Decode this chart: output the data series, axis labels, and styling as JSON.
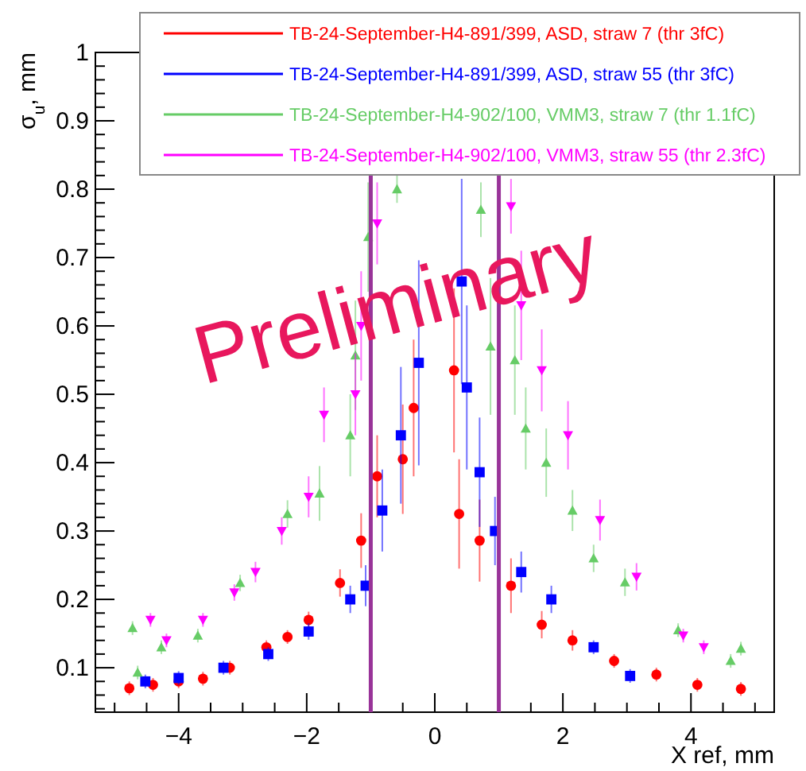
{
  "chart_data": {
    "type": "scatter",
    "xlabel": "X ref, mm",
    "ylabel": "σ$_{u}$, mm",
    "xlim": [
      -5.3,
      5.3
    ],
    "ylim": [
      0.035,
      1
    ],
    "xticks": [
      {
        "value": -4,
        "label": "−4"
      },
      {
        "value": -2,
        "label": "−2"
      },
      0,
      2,
      4
    ],
    "yticks": [
      0.1,
      0.2,
      0.3,
      0.4,
      0.5,
      0.6,
      0.7,
      0.8,
      0.9,
      1
    ],
    "grid": false,
    "legend": "top right",
    "line_style": "solid",
    "annotations": [
      "Preliminary"
    ],
    "ref_lines": [
      {
        "axis": "x",
        "value": -1,
        "color": "#993399"
      },
      {
        "axis": "x",
        "value": 1,
        "color": "#993399"
      }
    ],
    "series": [
      {
        "name": "TB-24-September-H4-891/399, ASD, straw 7 (thr 3fC)",
        "color": "#ff0000",
        "marker": "circle",
        "x": [
          -4.77,
          -4.4,
          -4.0,
          -3.62,
          -3.2,
          -2.63,
          -2.3,
          -1.97,
          -1.48,
          -1.15,
          -0.9,
          -0.5,
          -0.33,
          0.3,
          0.38,
          0.7,
          1.19,
          1.67,
          2.15,
          2.8,
          3.46,
          4.1,
          4.78
        ],
        "values": [
          0.07,
          0.075,
          0.08,
          0.084,
          0.1,
          0.13,
          0.145,
          0.17,
          0.224,
          0.286,
          0.38,
          0.405,
          0.48,
          0.535,
          0.325,
          0.286,
          0.22,
          0.163,
          0.14,
          0.11,
          0.09,
          0.075,
          0.069
        ],
        "errors": [
          0.01,
          0.01,
          0.01,
          0.01,
          0.01,
          0.01,
          0.01,
          0.012,
          0.02,
          0.04,
          0.06,
          0.08,
          0.1,
          0.12,
          0.08,
          0.06,
          0.04,
          0.02,
          0.015,
          0.01,
          0.01,
          0.01,
          0.01
        ]
      },
      {
        "name": "TB-24-September-H4-891/399, ASD, straw 55 (thr 3fC)",
        "color": "#0000ff",
        "marker": "square",
        "x": [
          -4.52,
          -4.0,
          -3.3,
          -2.6,
          -1.97,
          -1.32,
          -1.08,
          -0.82,
          -0.53,
          -0.25,
          0.42,
          0.5,
          0.7,
          0.94,
          1.35,
          1.82,
          2.48,
          3.05
        ],
        "values": [
          0.08,
          0.085,
          0.1,
          0.12,
          0.153,
          0.2,
          0.22,
          0.33,
          0.44,
          0.546,
          0.665,
          0.51,
          0.386,
          0.3,
          0.24,
          0.2,
          0.13,
          0.088
        ],
        "errors": [
          0.01,
          0.01,
          0.01,
          0.01,
          0.012,
          0.02,
          0.03,
          0.06,
          0.1,
          0.15,
          0.15,
          0.12,
          0.08,
          0.05,
          0.03,
          0.02,
          0.01,
          0.01
        ]
      },
      {
        "name": "TB-24-September-H4-902/100, VMM3, straw 7 (thr 1.1fC)",
        "color": "#66cc66",
        "marker": "triangle",
        "x": [
          -4.72,
          -4.64,
          -4.27,
          -3.7,
          -3.04,
          -2.3,
          -1.8,
          -1.32,
          -1.24,
          -1.04,
          -0.59,
          0.72,
          0.87,
          1.25,
          1.42,
          1.74,
          2.15,
          2.48,
          2.97,
          3.8,
          4.62,
          4.78
        ],
        "values": [
          0.158,
          0.093,
          0.13,
          0.147,
          0.224,
          0.325,
          0.355,
          0.44,
          0.557,
          0.73,
          0.8,
          0.77,
          0.57,
          0.55,
          0.45,
          0.4,
          0.33,
          0.26,
          0.225,
          0.155,
          0.11,
          0.128
        ],
        "errors": [
          0.01,
          0.01,
          0.01,
          0.01,
          0.012,
          0.02,
          0.04,
          0.06,
          0.08,
          0.08,
          0.02,
          0.04,
          0.1,
          0.08,
          0.06,
          0.05,
          0.03,
          0.02,
          0.02,
          0.01,
          0.01,
          0.01
        ]
      },
      {
        "name": "TB-24-September-H4-902/100, VMM3, straw 55 (thr 2.3fC)",
        "color": "#ff00ff",
        "marker": "triangle-down",
        "x": [
          -4.44,
          -4.19,
          -3.62,
          -3.13,
          -2.8,
          -2.39,
          -1.97,
          -1.73,
          -1.24,
          -1.15,
          -0.9,
          1.19,
          1.35,
          1.67,
          2.08,
          2.58,
          3.15,
          3.88,
          4.2
        ],
        "values": [
          0.17,
          0.14,
          0.17,
          0.21,
          0.24,
          0.3,
          0.35,
          0.47,
          0.5,
          0.6,
          0.75,
          0.775,
          0.63,
          0.535,
          0.44,
          0.316,
          0.233,
          0.147,
          0.13
        ],
        "errors": [
          0.01,
          0.01,
          0.01,
          0.012,
          0.015,
          0.02,
          0.03,
          0.04,
          0.06,
          0.08,
          0.06,
          0.04,
          0.08,
          0.06,
          0.05,
          0.03,
          0.02,
          0.01,
          0.01
        ]
      }
    ]
  }
}
